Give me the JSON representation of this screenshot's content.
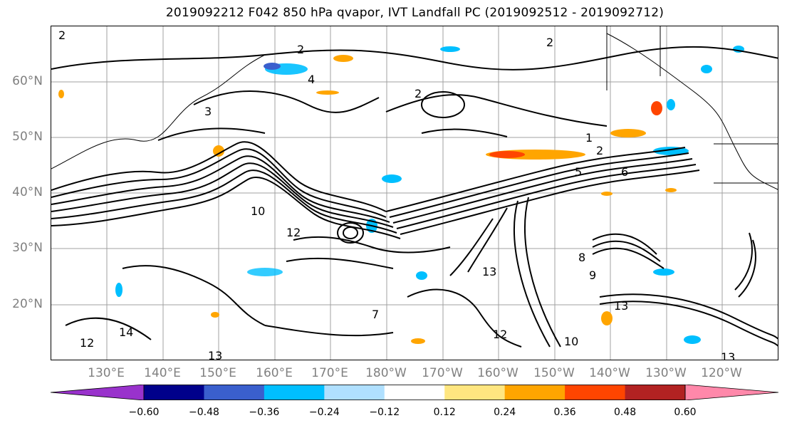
{
  "title": "2019092212 F042 850 hPa qvapor, IVT Landfall PC (2019092512 - 2019092712)",
  "map": {
    "projection": "cylindrical",
    "region": "North Pacific",
    "lat_labels": [
      "60°N",
      "50°N",
      "40°N",
      "30°N",
      "20°N"
    ],
    "lon_labels": [
      "130°E",
      "140°E",
      "150°E",
      "160°E",
      "170°E",
      "180°W",
      "170°W",
      "160°W",
      "150°W",
      "140°W",
      "130°W",
      "120°W"
    ],
    "grid": true,
    "contour_labels": [
      "2",
      "2",
      "2",
      "3",
      "2",
      "4",
      "1",
      "2",
      "5",
      "6",
      "10",
      "12",
      "13",
      "14",
      "13",
      "12",
      "10",
      "9",
      "8",
      "7",
      "13",
      "12",
      "13"
    ]
  },
  "colorbar": {
    "tick_labels": [
      "−0.60",
      "−0.48",
      "−0.36",
      "−0.24",
      "−0.12",
      "0.12",
      "0.24",
      "0.36",
      "0.48",
      "0.60"
    ],
    "colors": [
      "#9932cc",
      "#00008b",
      "#3a5fcd",
      "#00bfff",
      "#b0e0ff",
      "#ffffff",
      "#ffe680",
      "#ffa500",
      "#ff4500",
      "#b22222",
      "#ff88aa"
    ],
    "extend": "both"
  }
}
